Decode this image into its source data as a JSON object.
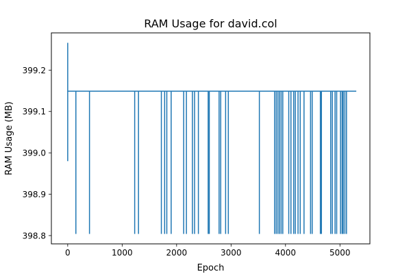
{
  "chart_data": {
    "type": "line",
    "title": "RAM Usage for david.col",
    "xlabel": "Epoch",
    "ylabel": "RAM Usage (MB)",
    "xlim": [
      -300,
      5550
    ],
    "ylim": [
      398.78,
      399.29
    ],
    "xticks": [
      0,
      1000,
      2000,
      3000,
      4000,
      5000
    ],
    "xtick_labels": [
      "0",
      "1000",
      "2000",
      "3000",
      "4000",
      "5000"
    ],
    "yticks": [
      398.8,
      398.9,
      399.0,
      399.1,
      399.2
    ],
    "ytick_labels": [
      "398.8",
      "398.9",
      "399.0",
      "399.1",
      "399.2"
    ],
    "grid": false,
    "legend": "none",
    "series": [
      {
        "color": "#1f77b4",
        "x": [
          0,
          0,
          0,
          0,
          0,
          150,
          150,
          150,
          400,
          400,
          400,
          1230,
          1230,
          1230,
          1300,
          1300,
          1300,
          1720,
          1720,
          1720,
          1780,
          1780,
          1780,
          1820,
          1820,
          1820,
          1900,
          1900,
          1900,
          2130,
          2130,
          2130,
          2180,
          2180,
          2180,
          2290,
          2290,
          2290,
          2330,
          2330,
          2330,
          2400,
          2400,
          2400,
          2580,
          2580,
          2580,
          2600,
          2600,
          2600,
          2780,
          2780,
          2780,
          2810,
          2810,
          2810,
          2900,
          2900,
          2900,
          2950,
          2950,
          2950,
          3520,
          3520,
          3520,
          3800,
          3800,
          3800,
          3830,
          3830,
          3830,
          3860,
          3860,
          3860,
          3890,
          3890,
          3890,
          3920,
          3920,
          3920,
          3950,
          3950,
          3950,
          4060,
          4060,
          4060,
          4100,
          4100,
          4100,
          4150,
          4150,
          4150,
          4180,
          4180,
          4180,
          4230,
          4230,
          4230,
          4270,
          4270,
          4270,
          4340,
          4340,
          4340,
          4460,
          4460,
          4460,
          4490,
          4490,
          4490,
          4640,
          4640,
          4640,
          4660,
          4660,
          4660,
          4830,
          4830,
          4830,
          4860,
          4860,
          4860,
          4910,
          4910,
          4910,
          4940,
          4940,
          4940,
          5010,
          5010,
          5010,
          5040,
          5040,
          5040,
          5060,
          5060,
          5060,
          5090,
          5090,
          5090,
          5120,
          5120,
          5120,
          5300
        ],
        "y": [
          398.98,
          399.266,
          399.266,
          399.149,
          399.149,
          399.149,
          398.804,
          399.149,
          399.149,
          398.804,
          399.149,
          399.149,
          398.804,
          399.149,
          399.149,
          398.804,
          399.149,
          399.149,
          398.804,
          399.149,
          399.149,
          398.804,
          399.149,
          399.149,
          398.804,
          399.149,
          399.149,
          398.804,
          399.149,
          399.149,
          398.804,
          399.149,
          399.149,
          398.804,
          399.149,
          399.149,
          398.804,
          399.149,
          399.149,
          398.804,
          399.149,
          399.149,
          398.804,
          399.149,
          399.149,
          398.804,
          399.149,
          399.149,
          398.804,
          399.149,
          399.149,
          398.804,
          399.149,
          399.149,
          398.804,
          399.149,
          399.149,
          398.804,
          399.149,
          399.149,
          398.804,
          399.149,
          399.149,
          398.804,
          399.149,
          399.149,
          398.804,
          399.149,
          399.149,
          398.804,
          399.149,
          399.149,
          398.804,
          399.149,
          399.149,
          398.804,
          399.149,
          399.149,
          398.804,
          399.149,
          399.149,
          398.804,
          399.149,
          399.149,
          398.804,
          399.149,
          399.149,
          398.804,
          399.149,
          399.149,
          398.804,
          399.149,
          399.149,
          398.804,
          399.149,
          399.149,
          398.804,
          399.149,
          399.149,
          398.804,
          399.149,
          399.149,
          398.804,
          399.149,
          399.149,
          398.804,
          399.149,
          399.149,
          398.804,
          399.149,
          399.149,
          398.804,
          399.149,
          399.149,
          398.804,
          399.149,
          399.149,
          398.804,
          399.149,
          399.149,
          398.804,
          399.149,
          399.149,
          398.804,
          399.149,
          399.149,
          398.804,
          399.149,
          399.149,
          398.804,
          399.149,
          399.149,
          398.804,
          399.149,
          399.149,
          398.804,
          399.149,
          399.149,
          398.804,
          399.149,
          399.149,
          398.804,
          399.149,
          399.149
        ]
      }
    ]
  }
}
